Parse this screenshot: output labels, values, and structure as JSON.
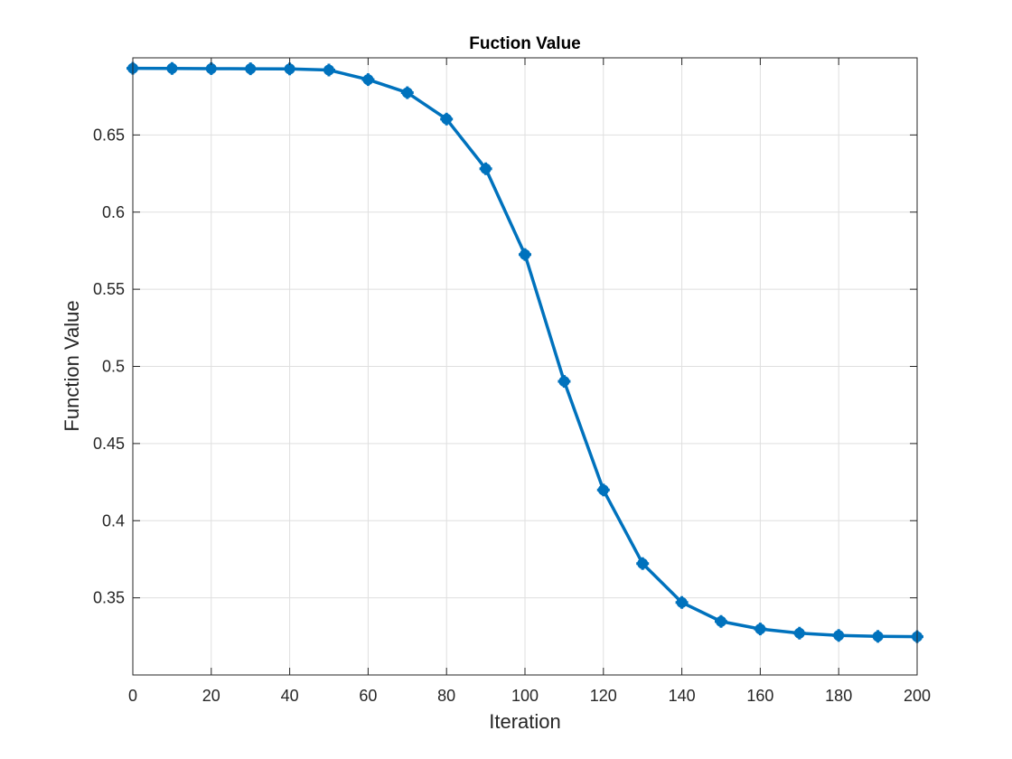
{
  "chart_data": {
    "type": "line",
    "title": "Fuction Value",
    "xlabel": "Iteration",
    "ylabel": "Function Value",
    "xlim": [
      0,
      200
    ],
    "ylim": [
      0.3,
      0.7
    ],
    "xticks": [
      0,
      20,
      40,
      60,
      80,
      100,
      120,
      140,
      160,
      180,
      200
    ],
    "yticks": [
      0.35,
      0.4,
      0.45,
      0.5,
      0.55,
      0.6,
      0.65
    ],
    "ytick_labels": [
      "0.35",
      "0.4",
      "0.45",
      "0.5",
      "0.55",
      "0.6",
      "0.65"
    ],
    "grid": true,
    "series": [
      {
        "color": "#0072BD",
        "marker": "filled-circle-cross",
        "x": [
          0,
          10,
          20,
          30,
          40,
          50,
          60,
          70,
          80,
          90,
          100,
          110,
          120,
          130,
          140,
          150,
          160,
          170,
          180,
          190,
          200
        ],
        "y": [
          0.6932,
          0.6931,
          0.693,
          0.6929,
          0.6928,
          0.6921,
          0.6859,
          0.6774,
          0.6603,
          0.6281,
          0.5725,
          0.4903,
          0.4199,
          0.3722,
          0.347,
          0.3347,
          0.3298,
          0.3271,
          0.3256,
          0.325,
          0.3248
        ]
      }
    ]
  }
}
